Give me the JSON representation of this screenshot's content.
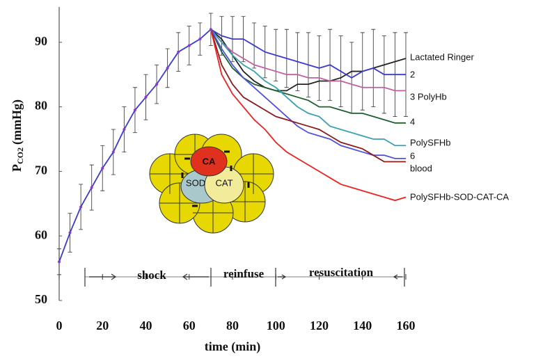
{
  "chart_data": {
    "type": "line",
    "x_label": "time (min)",
    "y_label": {
      "main": "P",
      "sub": "CO2",
      "unit": "(mmHg)"
    },
    "x": [
      0,
      5,
      10,
      15,
      20,
      25,
      30,
      35,
      40,
      45,
      50,
      55,
      60,
      65,
      70,
      75,
      80,
      85,
      90,
      95,
      100,
      105,
      110,
      115,
      120,
      125,
      130,
      135,
      140,
      145,
      150,
      155,
      160
    ],
    "xlim": [
      0,
      160
    ],
    "xticks": [
      0,
      20,
      40,
      60,
      80,
      100,
      120,
      140,
      160
    ],
    "ylim": [
      50,
      95
    ],
    "yticks": [
      50,
      60,
      70,
      80,
      90
    ],
    "series": [
      {
        "name": "Lactated Ringer",
        "color": "#222222",
        "values": [
          null,
          null,
          null,
          null,
          null,
          null,
          null,
          null,
          null,
          null,
          null,
          null,
          null,
          null,
          92,
          90.5,
          88,
          85.5,
          84,
          83,
          82.5,
          82.5,
          83.5,
          83.5,
          84,
          84,
          84.5,
          85.5,
          85.5,
          86,
          86.5,
          87,
          87.5
        ]
      },
      {
        "name": "2",
        "color": "#3a3ad0",
        "values": [
          56,
          60.5,
          64.5,
          67.5,
          70.5,
          73,
          76.5,
          79.5,
          81.5,
          83.5,
          86,
          88.5,
          89.5,
          90.5,
          92,
          91,
          90.5,
          90.5,
          89.5,
          88.5,
          88,
          87.5,
          87,
          86.5,
          86,
          86.5,
          85.5,
          84.5,
          85.5,
          86,
          85,
          85,
          85
        ],
        "errors": [
          2,
          3,
          3.5,
          3.5,
          3.5,
          3.5,
          3.5,
          3.5,
          3.5,
          3,
          3,
          3,
          3,
          2.5,
          2.5,
          3,
          3.5,
          3.5,
          3.5,
          4,
          4,
          4.5,
          4.5,
          5,
          5,
          5.5,
          5.5,
          5.5,
          6,
          6,
          6,
          6.5,
          6.5
        ]
      },
      {
        "name": "3 PolyHb",
        "color": "#c060a0",
        "values": [
          null,
          null,
          null,
          null,
          null,
          null,
          null,
          null,
          null,
          null,
          null,
          null,
          null,
          null,
          92,
          90,
          88.5,
          87.5,
          86.5,
          86,
          85.5,
          85,
          85,
          84.5,
          84.5,
          84,
          84,
          83.5,
          83,
          83,
          83,
          82.5,
          82.5
        ]
      },
      {
        "name": "4",
        "color": "#1e5e2e",
        "values": [
          null,
          null,
          null,
          null,
          null,
          null,
          null,
          null,
          null,
          null,
          null,
          null,
          null,
          null,
          92,
          88.5,
          86,
          84.5,
          83.5,
          83,
          82.5,
          82,
          81.5,
          81,
          80,
          80,
          79.5,
          79,
          79,
          78.5,
          78,
          77.5,
          77.5
        ]
      },
      {
        "name": "PolySFHb",
        "color": "#3aa0b0",
        "values": [
          null,
          null,
          null,
          null,
          null,
          null,
          null,
          null,
          null,
          null,
          null,
          null,
          null,
          null,
          92,
          90,
          88,
          86.5,
          85.5,
          84,
          83,
          81.5,
          80,
          79,
          78.5,
          77,
          76.5,
          76,
          75.5,
          75,
          75,
          74,
          74
        ]
      },
      {
        "name": "6",
        "color": "#5050e0",
        "values": [
          null,
          null,
          null,
          null,
          null,
          null,
          null,
          null,
          null,
          null,
          null,
          null,
          null,
          null,
          92,
          89,
          86.5,
          84.5,
          83,
          81.5,
          80,
          78.5,
          77,
          76,
          75.5,
          75,
          74,
          73.5,
          73,
          72.5,
          72.5,
          72,
          72
        ]
      },
      {
        "name": "blood",
        "color": "#8b1a1a",
        "values": [
          null,
          null,
          null,
          null,
          null,
          null,
          null,
          null,
          null,
          null,
          null,
          null,
          null,
          null,
          92,
          86.5,
          83.5,
          81.5,
          80.5,
          79.5,
          78.5,
          78,
          77.5,
          77,
          76.5,
          75.5,
          74.5,
          74,
          73.5,
          72.5,
          71.5,
          71.5,
          71.5
        ]
      },
      {
        "name": "PolySFHb-SOD-CAT-CA",
        "color": "#f02020",
        "values": [
          null,
          null,
          null,
          null,
          null,
          null,
          null,
          null,
          null,
          null,
          null,
          null,
          null,
          null,
          92,
          85,
          82,
          80,
          78,
          76.5,
          74.5,
          73,
          72,
          71,
          70,
          69,
          68,
          67.5,
          67,
          66.5,
          66,
          65.5,
          66
        ]
      }
    ],
    "annotations": [
      "shock",
      "reinfuse",
      "resuscitation"
    ],
    "diagram_labels": [
      "CA",
      "SOD",
      "CAT"
    ]
  }
}
